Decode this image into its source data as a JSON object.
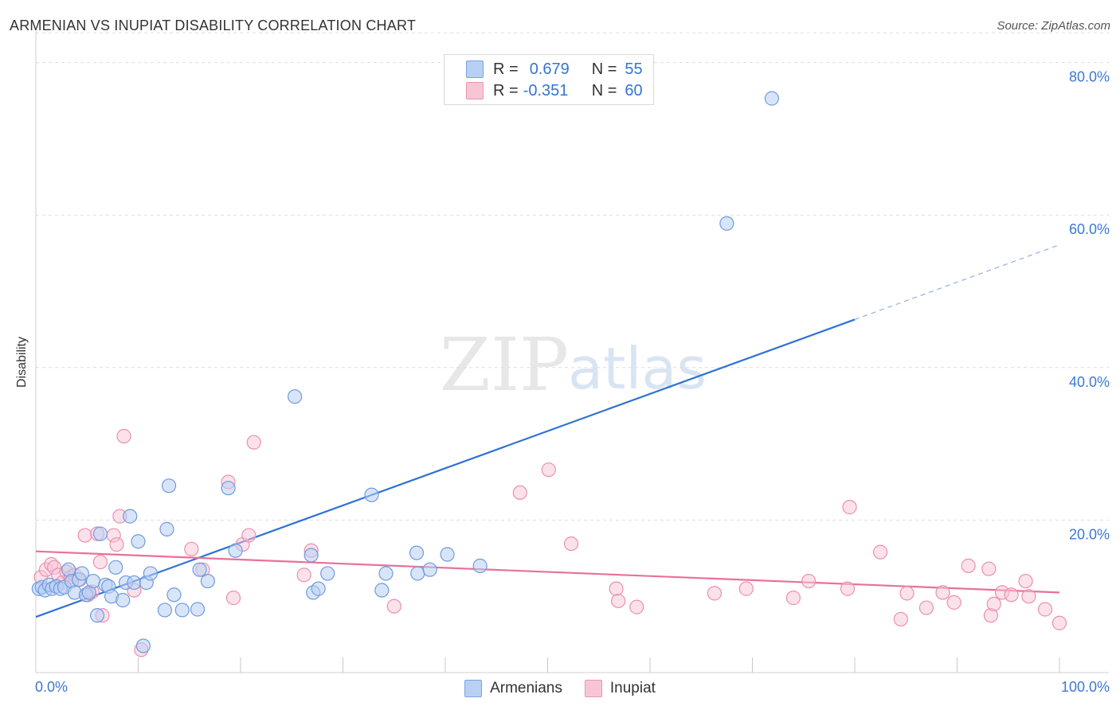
{
  "title": "ARMENIAN VS INUPIAT DISABILITY CORRELATION CHART",
  "source": "Source: ZipAtlas.com",
  "watermark": {
    "zip": "ZIP",
    "atlas": "atlas"
  },
  "legend": {
    "rows": [
      {
        "r_label": "R =",
        "r_value": "0.679",
        "n_label": "N =",
        "n_value": "55"
      },
      {
        "r_label": "R =",
        "r_value": "-0.351",
        "n_label": "N =",
        "n_value": "60"
      }
    ]
  },
  "bottom_legend": {
    "armenians": "Armenians",
    "inupiat": "Inupiat"
  },
  "colors": {
    "blue_fill": "#b8d0f2",
    "blue_stroke": "#6f9be0",
    "blue_line": "#2f72d6",
    "pink_fill": "#f7c6d5",
    "pink_stroke": "#ec8fae",
    "pink_line": "#e8709a",
    "grid": "#dddddd",
    "tick_label": "#3d78d4"
  },
  "chart_data": {
    "type": "scatter",
    "title": "ARMENIAN VS INUPIAT DISABILITY CORRELATION CHART",
    "xlabel": "",
    "ylabel": "Disability",
    "xlim": [
      0,
      100
    ],
    "ylim": [
      0,
      84
    ],
    "x_tick_labels": [
      "0.0%",
      "100.0%"
    ],
    "y_ticks": [
      20,
      40,
      60,
      80
    ],
    "y_tick_labels": [
      "20.0%",
      "40.0%",
      "60.0%",
      "80.0%"
    ],
    "grid": "horizontal dashed",
    "legend_position": "top-center",
    "series": [
      {
        "name": "Armenians",
        "points": [
          [
            0.3,
            11.0
          ],
          [
            0.6,
            11.2
          ],
          [
            0.9,
            10.8
          ],
          [
            1.3,
            11.5
          ],
          [
            1.6,
            11.0
          ],
          [
            2.0,
            11.3
          ],
          [
            2.4,
            11.0
          ],
          [
            2.8,
            11.2
          ],
          [
            3.2,
            13.5
          ],
          [
            3.5,
            12.0
          ],
          [
            3.8,
            10.5
          ],
          [
            4.2,
            12.2
          ],
          [
            4.5,
            13.0
          ],
          [
            4.9,
            10.2
          ],
          [
            5.2,
            10.5
          ],
          [
            5.6,
            12.0
          ],
          [
            6.0,
            7.5
          ],
          [
            6.3,
            18.2
          ],
          [
            6.8,
            11.5
          ],
          [
            7.1,
            11.3
          ],
          [
            7.4,
            10.0
          ],
          [
            7.8,
            13.8
          ],
          [
            8.5,
            9.5
          ],
          [
            8.8,
            11.8
          ],
          [
            9.2,
            20.5
          ],
          [
            9.6,
            11.8
          ],
          [
            10.0,
            17.2
          ],
          [
            10.5,
            3.5
          ],
          [
            10.8,
            11.8
          ],
          [
            11.2,
            13.0
          ],
          [
            12.8,
            18.8
          ],
          [
            12.6,
            8.2
          ],
          [
            13.0,
            24.5
          ],
          [
            13.5,
            10.2
          ],
          [
            14.3,
            8.2
          ],
          [
            15.8,
            8.3
          ],
          [
            16.0,
            13.5
          ],
          [
            16.8,
            12.0
          ],
          [
            18.8,
            24.2
          ],
          [
            19.5,
            16.0
          ],
          [
            25.3,
            36.2
          ],
          [
            26.9,
            15.4
          ],
          [
            27.1,
            10.5
          ],
          [
            27.6,
            11.0
          ],
          [
            28.5,
            13.0
          ],
          [
            32.8,
            23.3
          ],
          [
            33.8,
            10.8
          ],
          [
            34.2,
            13.0
          ],
          [
            37.2,
            15.7
          ],
          [
            37.3,
            13.0
          ],
          [
            38.5,
            13.5
          ],
          [
            40.2,
            15.5
          ],
          [
            43.4,
            14.0
          ],
          [
            67.5,
            58.9
          ],
          [
            71.9,
            75.3
          ]
        ],
        "trend": {
          "x": [
            0,
            80
          ],
          "y": [
            7.3,
            46.3
          ],
          "dashed_extension": {
            "x": [
              80,
              100
            ],
            "y": [
              46.3,
              56.1
            ]
          }
        },
        "R": 0.679,
        "N": 55
      },
      {
        "name": "Inupiat",
        "points": [
          [
            0.5,
            12.5
          ],
          [
            1.0,
            13.5
          ],
          [
            1.5,
            14.2
          ],
          [
            1.8,
            13.8
          ],
          [
            2.2,
            12.8
          ],
          [
            2.6,
            11.8
          ],
          [
            3.0,
            13.2
          ],
          [
            3.4,
            12.5
          ],
          [
            3.8,
            12.8
          ],
          [
            4.3,
            12.2
          ],
          [
            4.8,
            18.0
          ],
          [
            5.1,
            10.2
          ],
          [
            5.5,
            10.6
          ],
          [
            6.0,
            18.2
          ],
          [
            6.3,
            14.5
          ],
          [
            6.5,
            7.5
          ],
          [
            7.6,
            18.0
          ],
          [
            7.9,
            16.8
          ],
          [
            8.2,
            20.5
          ],
          [
            8.6,
            31.0
          ],
          [
            9.6,
            10.8
          ],
          [
            10.3,
            3.0
          ],
          [
            15.2,
            16.2
          ],
          [
            16.3,
            13.5
          ],
          [
            18.8,
            25.0
          ],
          [
            19.3,
            9.8
          ],
          [
            20.2,
            16.8
          ],
          [
            20.8,
            18.0
          ],
          [
            21.3,
            30.2
          ],
          [
            26.2,
            12.8
          ],
          [
            26.9,
            16.0
          ],
          [
            35.0,
            8.7
          ],
          [
            47.3,
            23.6
          ],
          [
            50.1,
            26.6
          ],
          [
            52.3,
            16.9
          ],
          [
            56.7,
            11.0
          ],
          [
            56.9,
            9.4
          ],
          [
            58.7,
            8.6
          ],
          [
            66.3,
            10.4
          ],
          [
            69.4,
            11.0
          ],
          [
            74.0,
            9.8
          ],
          [
            75.5,
            12.0
          ],
          [
            79.3,
            11.0
          ],
          [
            79.5,
            21.7
          ],
          [
            82.5,
            15.8
          ],
          [
            84.5,
            7.0
          ],
          [
            85.1,
            10.4
          ],
          [
            87.0,
            8.5
          ],
          [
            88.6,
            10.5
          ],
          [
            89.7,
            9.2
          ],
          [
            91.1,
            14.0
          ],
          [
            93.1,
            13.6
          ],
          [
            93.3,
            7.5
          ],
          [
            93.6,
            9.0
          ],
          [
            94.4,
            10.5
          ],
          [
            95.3,
            10.2
          ],
          [
            96.7,
            12.0
          ],
          [
            97.0,
            10.0
          ],
          [
            98.6,
            8.3
          ],
          [
            100.0,
            6.5
          ]
        ],
        "trend": {
          "x": [
            0,
            100
          ],
          "y": [
            15.9,
            10.5
          ]
        },
        "R": -0.351,
        "N": 60
      }
    ]
  }
}
